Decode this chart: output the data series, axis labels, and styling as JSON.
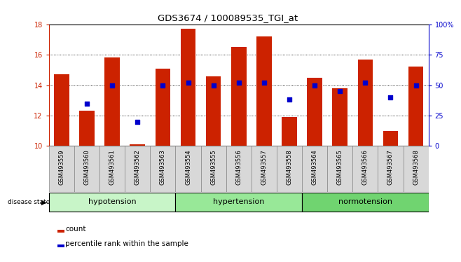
{
  "title": "GDS3674 / 100089535_TGI_at",
  "samples": [
    "GSM493559",
    "GSM493560",
    "GSM493561",
    "GSM493562",
    "GSM493563",
    "GSM493554",
    "GSM493555",
    "GSM493556",
    "GSM493557",
    "GSM493558",
    "GSM493564",
    "GSM493565",
    "GSM493566",
    "GSM493567",
    "GSM493568"
  ],
  "counts": [
    14.7,
    12.3,
    15.8,
    10.1,
    15.1,
    17.7,
    14.6,
    16.5,
    17.2,
    11.9,
    14.5,
    13.8,
    15.7,
    11.0,
    15.2
  ],
  "percentile_values": [
    null,
    35,
    50,
    20,
    50,
    52,
    50,
    52,
    52,
    38,
    50,
    45,
    52,
    40,
    50
  ],
  "groups": [
    {
      "label": "hypotension",
      "indices": [
        0,
        1,
        2,
        3,
        4
      ],
      "color": "#c8f5c8"
    },
    {
      "label": "hypertension",
      "indices": [
        5,
        6,
        7,
        8,
        9
      ],
      "color": "#a0e8a0"
    },
    {
      "label": "normotension",
      "indices": [
        10,
        11,
        12,
        13,
        14
      ],
      "color": "#80d880"
    }
  ],
  "ylim": [
    10,
    18
  ],
  "y2lim": [
    0,
    100
  ],
  "yticks": [
    10,
    12,
    14,
    16,
    18
  ],
  "y2ticks": [
    0,
    25,
    50,
    75,
    100
  ],
  "y2tick_labels": [
    "0",
    "25",
    "50",
    "75",
    "100%"
  ],
  "bar_color": "#cc2200",
  "dot_color": "#0000cc",
  "bar_width": 0.6,
  "label_count": "count",
  "label_percentile": "percentile rank within the sample"
}
